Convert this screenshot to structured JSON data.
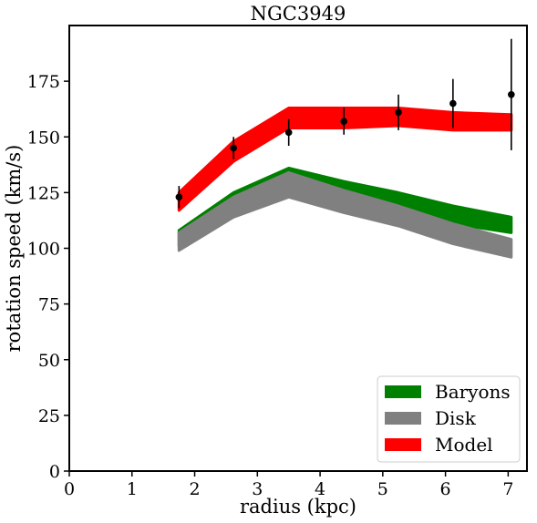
{
  "chart_data": {
    "type": "area",
    "title": "NGC3949",
    "xlabel": "radius (kpc)",
    "ylabel": "rotation speed (km/s)",
    "xlim": [
      0,
      7.3
    ],
    "ylim": [
      0,
      200
    ],
    "xticks": [
      0,
      1,
      2,
      3,
      4,
      5,
      6,
      7
    ],
    "yticks": [
      0,
      25,
      50,
      75,
      100,
      125,
      150,
      175
    ],
    "x": [
      1.75,
      2.62,
      3.5,
      4.38,
      5.25,
      6.12,
      7.05
    ],
    "bands": [
      {
        "name": "Baryons",
        "color": "#008000",
        "lower": [
          101,
          116,
          126,
          121,
          117,
          111,
          107
        ],
        "upper": [
          108,
          125,
          136,
          130,
          125,
          119,
          114
        ]
      },
      {
        "name": "Disk",
        "color": "#808080",
        "lower": [
          99,
          114,
          123,
          116,
          110,
          102,
          96
        ],
        "upper": [
          107,
          123,
          134,
          126,
          119,
          111,
          104
        ]
      },
      {
        "name": "Model",
        "color": "#ff0000",
        "lower": [
          117,
          139,
          154,
          154,
          155,
          153,
          153
        ],
        "upper": [
          125,
          148,
          163,
          163,
          163,
          161,
          160
        ]
      }
    ],
    "observed": {
      "color": "#000000",
      "values": [
        123,
        145,
        152,
        157,
        161,
        165,
        169
      ],
      "errors": [
        5,
        5,
        6,
        6,
        8,
        11,
        25
      ]
    },
    "legend": {
      "position": "bottom-right",
      "entries": [
        "Baryons",
        "Disk",
        "Model"
      ]
    },
    "grid": false
  }
}
